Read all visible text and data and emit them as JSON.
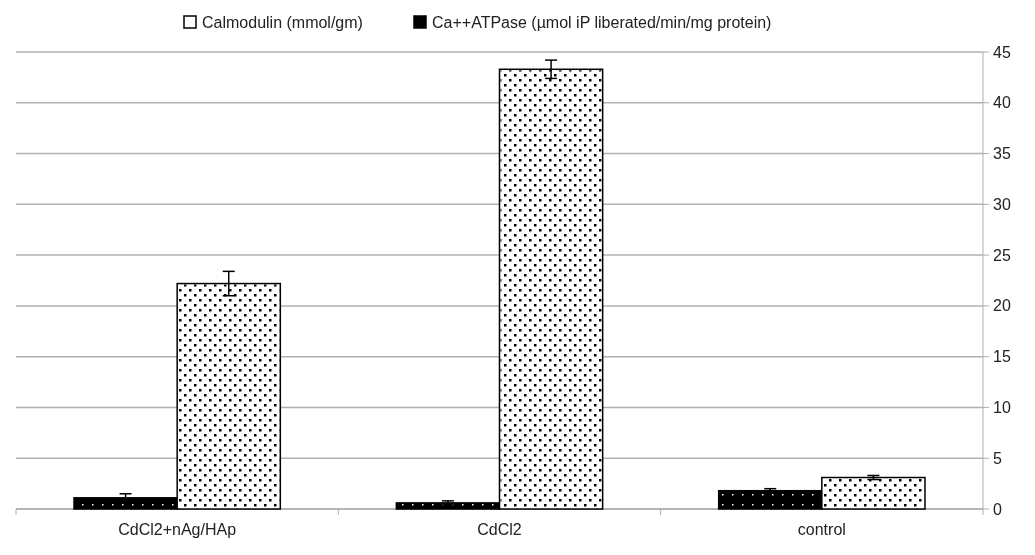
{
  "chart_data": {
    "type": "bar",
    "categories": [
      "CdCl2+nAg/HAp",
      "CdCl2",
      "control"
    ],
    "series": [
      {
        "name": "Ca++ATPase (µmol iP liberated/min/mg protein)",
        "color": "#000000",
        "values": [
          1.1,
          0.6,
          1.8
        ],
        "errors": [
          0.4,
          0.2,
          0.2
        ]
      },
      {
        "name": "Calmodulin (mmol/gm)",
        "color": "#ffffff",
        "values": [
          22.2,
          43.3,
          3.1
        ],
        "errors": [
          1.2,
          0.9,
          0.2
        ]
      }
    ],
    "ylim": [
      0,
      45
    ],
    "yticks": [
      0,
      5,
      10,
      15,
      20,
      25,
      30,
      35,
      40,
      45
    ],
    "grid": "y",
    "legend": "top"
  }
}
